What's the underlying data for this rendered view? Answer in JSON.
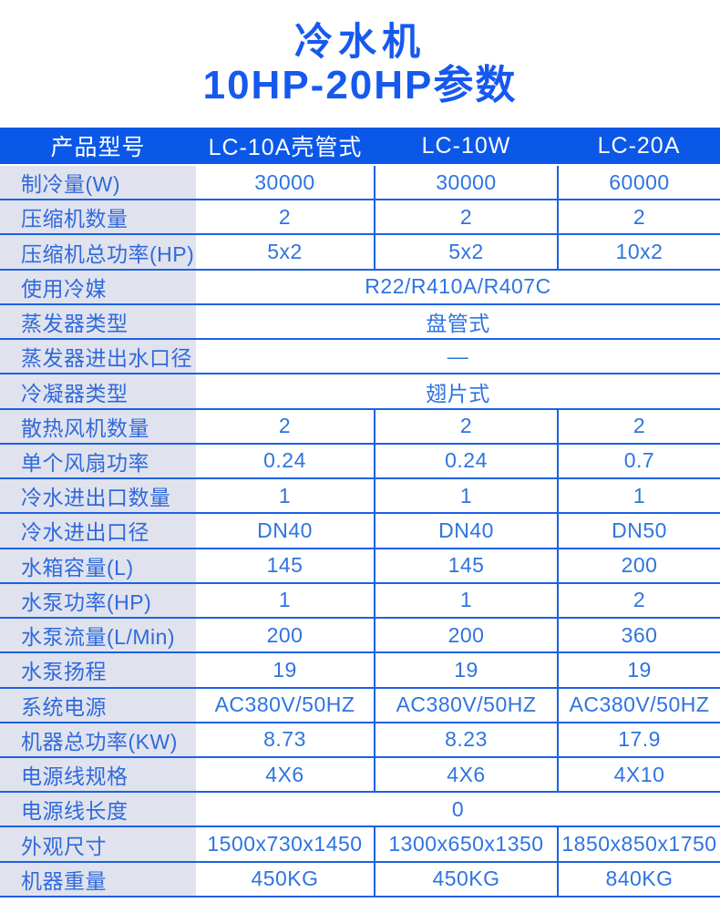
{
  "title": {
    "line1": "冷水机",
    "line2": "10HP-20HP参数"
  },
  "colors": {
    "header_bg": "#0b58e8",
    "title_text": "#1659ee",
    "label_bg": "#e0e3ed",
    "label_text": "#3069dd",
    "value_text": "#2e74e0",
    "border": "#1c61e4"
  },
  "table": {
    "header": [
      "产品型号",
      "LC-10A壳管式",
      "LC-10W",
      "LC-20A"
    ],
    "rows": [
      {
        "label": "制冷量(W)",
        "values": [
          "30000",
          "30000",
          "60000"
        ]
      },
      {
        "label": "压缩机数量",
        "values": [
          "2",
          "2",
          "2"
        ]
      },
      {
        "label": "压缩机总功率(HP)",
        "values": [
          "5x2",
          "5x2",
          "10x2"
        ]
      },
      {
        "label": "使用冷媒",
        "merged": "R22/R410A/R407C"
      },
      {
        "label": "蒸发器类型",
        "merged": "盘管式"
      },
      {
        "label": "蒸发器进出水口径",
        "merged": "—"
      },
      {
        "label": "冷凝器类型",
        "merged": "翅片式"
      },
      {
        "label": "散热风机数量",
        "values": [
          "2",
          "2",
          "2"
        ]
      },
      {
        "label": "单个风扇功率",
        "values": [
          "0.24",
          "0.24",
          "0.7"
        ]
      },
      {
        "label": "冷水进出口数量",
        "values": [
          "1",
          "1",
          "1"
        ]
      },
      {
        "label": "冷水进出口径",
        "values": [
          "DN40",
          "DN40",
          "DN50"
        ]
      },
      {
        "label": "水箱容量(L)",
        "values": [
          "145",
          "145",
          "200"
        ]
      },
      {
        "label": "水泵功率(HP)",
        "values": [
          "1",
          "1",
          "2"
        ]
      },
      {
        "label": "水泵流量(L/Min)",
        "values": [
          "200",
          "200",
          "360"
        ]
      },
      {
        "label": "水泵扬程",
        "values": [
          "19",
          "19",
          "19"
        ]
      },
      {
        "label": "系统电源",
        "values": [
          "AC380V/50HZ",
          "AC380V/50HZ",
          "AC380V/50HZ"
        ]
      },
      {
        "label": "机器总功率(KW)",
        "values": [
          "8.73",
          "8.23",
          "17.9"
        ]
      },
      {
        "label": "电源线规格",
        "values": [
          "4X6",
          "4X6",
          "4X10"
        ]
      },
      {
        "label": "电源线长度",
        "merged": "0"
      },
      {
        "label": "外观尺寸",
        "values": [
          "1500x730x1450",
          "1300x650x1350",
          "1850x850x1750"
        ]
      },
      {
        "label": "机器重量",
        "values": [
          "450KG",
          "450KG",
          "840KG"
        ]
      }
    ]
  }
}
